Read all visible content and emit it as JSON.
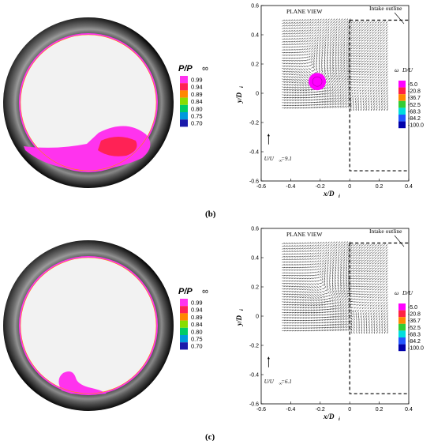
{
  "panels": [
    {
      "label": "(b)",
      "ring": {
        "legend_title_main": "P/P",
        "legend_title_sub": "∞",
        "legend_colors": [
          "#ff33ee",
          "#ff2255",
          "#ff8800",
          "#88dd00",
          "#00cc66",
          "#0099dd",
          "#1a1aaa"
        ],
        "legend_values": [
          "0.99",
          "0.94",
          "0.89",
          "0.84",
          "0.80",
          "0.75",
          "0.70"
        ],
        "blob": "large"
      },
      "vector_plot": {
        "title": "PLANE VIEW",
        "intake_label": "Intake outline",
        "x_label": "x/D",
        "x_label_sub": "i",
        "y_label": "y/D",
        "y_label_sub": "i",
        "x_ticks": [
          "-0.6",
          "-0.4",
          "-0.2",
          "0",
          "0.2",
          "0.4"
        ],
        "y_ticks": [
          "0.6",
          "0.4",
          "0.2",
          "0",
          "-0.2",
          "-0.4",
          "-0.6"
        ],
        "ref_vector_label": "U/U",
        "ref_vector_sub": "∞",
        "ref_vector_value": "=9.1",
        "vorticity_title": "ω",
        "vorticity_title_rest": "D/U",
        "vorticity_colors": [
          "#ff00ff",
          "#ff2244",
          "#ff8800",
          "#33cc33",
          "#00dddd",
          "#2255ff",
          "#0000aa"
        ],
        "vorticity_values": [
          "-5.0",
          "-20.8",
          "-36.7",
          "-52.5",
          "-68.3",
          "-84.2",
          "-100.0"
        ],
        "vortex_center": [
          -0.22,
          0.08
        ],
        "show_vortex_core": true
      }
    },
    {
      "label": "(c)",
      "ring": {
        "legend_title_main": "P/P",
        "legend_title_sub": "∞",
        "legend_colors": [
          "#ff33ee",
          "#ff2255",
          "#ff8800",
          "#88dd00",
          "#00cc66",
          "#0099dd",
          "#1a1aaa"
        ],
        "legend_values": [
          "0.99",
          "0.94",
          "0.89",
          "0.84",
          "0.80",
          "0.75",
          "0.70"
        ],
        "blob": "small"
      },
      "vector_plot": {
        "title": "PLANE VIEW",
        "intake_label": "Intake outline",
        "x_label": "x/D",
        "x_label_sub": "i",
        "y_label": "y/D",
        "y_label_sub": "i",
        "x_ticks": [
          "-0.6",
          "-0.4",
          "-0.2",
          "0",
          "0.2",
          "0.4"
        ],
        "y_ticks": [
          "0.6",
          "0.4",
          "0.2",
          "0",
          "-0.2",
          "-0.4",
          "-0.6"
        ],
        "ref_vector_label": "U/U",
        "ref_vector_sub": "∞",
        "ref_vector_value": "=6.1",
        "vorticity_title": "ω",
        "vorticity_title_rest": "D/U",
        "vorticity_colors": [
          "#ff00ff",
          "#ff2244",
          "#ff8800",
          "#33cc33",
          "#00dddd",
          "#2255ff",
          "#0000aa"
        ],
        "vorticity_values": [
          "-5.0",
          "-20.8",
          "-36.7",
          "-52.5",
          "-68.3",
          "-84.2",
          "-100.0"
        ],
        "vortex_center": [
          -0.15,
          0.12
        ],
        "show_vortex_core": false
      }
    }
  ],
  "chart_data": [
    {
      "type": "vector-field",
      "title": "PLANE VIEW",
      "xlabel": "x/Di",
      "ylabel": "y/Di",
      "xlim": [
        -0.6,
        0.4
      ],
      "ylim": [
        -0.6,
        0.6
      ],
      "reference_vector": "U/U∞=9.1",
      "colorbar": {
        "title": "ωzDi/Ui",
        "values": [
          -5.0,
          -20.8,
          -36.7,
          -52.5,
          -68.3,
          -84.2,
          -100.0
        ]
      },
      "vortex_center": [
        -0.22,
        0.08
      ]
    },
    {
      "type": "vector-field",
      "title": "PLANE VIEW",
      "xlabel": "x/Di",
      "ylabel": "y/Di",
      "xlim": [
        -0.6,
        0.4
      ],
      "ylim": [
        -0.6,
        0.6
      ],
      "reference_vector": "U/U∞=6.1",
      "colorbar": {
        "title": "ωzDi/Ui",
        "values": [
          -5.0,
          -20.8,
          -36.7,
          -52.5,
          -68.3,
          -84.2,
          -100.0
        ]
      },
      "vortex_center": [
        -0.15,
        0.12
      ]
    }
  ]
}
